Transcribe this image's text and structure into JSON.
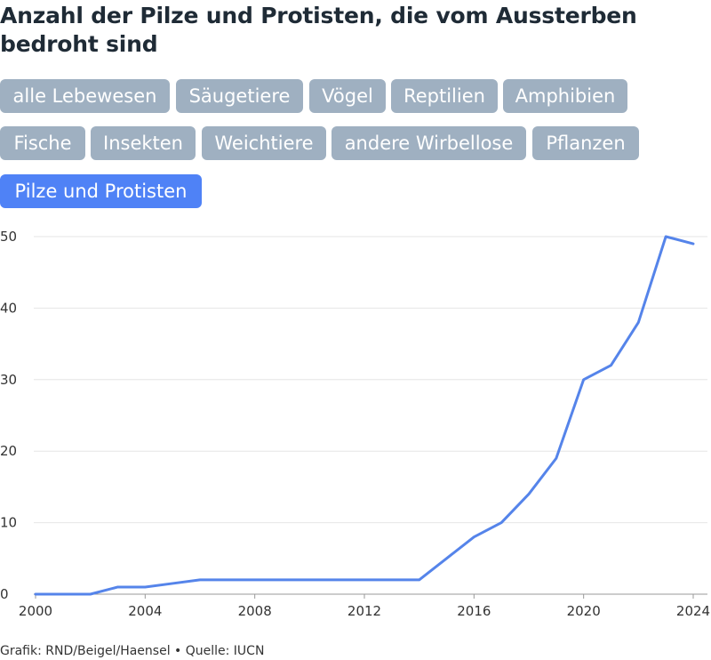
{
  "title": "Anzahl der Pilze und Protisten, die vom Aussterben bedroht sind",
  "filters": [
    {
      "label": "alle Lebewesen",
      "active": false
    },
    {
      "label": "Säugetiere",
      "active": false
    },
    {
      "label": "Vögel",
      "active": false
    },
    {
      "label": "Reptilien",
      "active": false
    },
    {
      "label": "Amphibien",
      "active": false
    },
    {
      "label": "Fische",
      "active": false
    },
    {
      "label": "Insekten",
      "active": false
    },
    {
      "label": "Weichtiere",
      "active": false
    },
    {
      "label": "andere Wirbellose",
      "active": false
    },
    {
      "label": "Pflanzen",
      "active": false
    },
    {
      "label": "Pilze und Protisten",
      "active": true
    }
  ],
  "colors": {
    "line": "#5584ea",
    "chip": "#9fb0c1",
    "chip_active": "#4f82f6",
    "grid": "#e6e6e6"
  },
  "chart_data": {
    "type": "line",
    "x": [
      2000,
      2001,
      2002,
      2003,
      2004,
      2005,
      2006,
      2007,
      2008,
      2009,
      2010,
      2011,
      2012,
      2013,
      2014,
      2015,
      2016,
      2017,
      2018,
      2019,
      2020,
      2021,
      2022,
      2023,
      2024
    ],
    "series": [
      {
        "values": [
          0,
          0,
          0,
          1,
          1,
          1.5,
          2,
          2,
          2,
          2,
          2,
          2,
          2,
          2,
          2,
          5,
          8,
          10,
          14,
          19,
          30,
          32,
          38,
          50,
          49
        ]
      }
    ],
    "xlim": [
      2000,
      2024
    ],
    "ylim": [
      0,
      50
    ],
    "x_ticks": [
      2000,
      2004,
      2008,
      2012,
      2016,
      2020,
      2024
    ],
    "y_ticks": [
      0,
      10,
      20,
      30,
      40,
      50
    ],
    "grid": true,
    "title": "",
    "xlabel": "",
    "ylabel": ""
  },
  "footer": "Grafik: RND/Beigel/Haensel • Quelle: IUCN"
}
